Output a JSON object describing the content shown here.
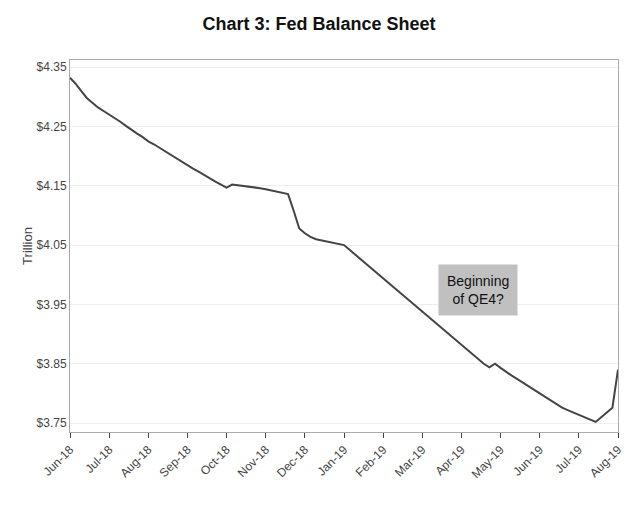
{
  "chart_data": {
    "type": "line",
    "title": "Chart 3: Fed Balance Sheet",
    "ylabel": "Trillion",
    "annotations": [
      "Beginning\nof QE4?"
    ],
    "color": "#444444",
    "grid": true,
    "ylim": [
      3.735,
      4.362
    ],
    "yticks": [
      {
        "value": 3.75,
        "label": "$3.75"
      },
      {
        "value": 3.85,
        "label": "$3.85"
      },
      {
        "value": 3.95,
        "label": "$3.95"
      },
      {
        "value": 4.05,
        "label": "$4.05"
      },
      {
        "value": 4.15,
        "label": "$4.15"
      },
      {
        "value": 4.25,
        "label": "$4.25"
      },
      {
        "value": 4.35,
        "label": "$4.35"
      }
    ],
    "categories": [
      "Jun-18",
      null,
      null,
      null,
      null,
      null,
      null,
      "Jul-18",
      null,
      null,
      null,
      null,
      null,
      null,
      "Aug-18",
      null,
      null,
      null,
      null,
      null,
      null,
      "Sep-18",
      null,
      null,
      null,
      null,
      null,
      null,
      "Oct-18",
      null,
      null,
      null,
      null,
      null,
      null,
      "Nov-18",
      null,
      null,
      null,
      null,
      null,
      null,
      "Dec-18",
      null,
      null,
      null,
      null,
      null,
      null,
      "Jan-19",
      null,
      null,
      null,
      null,
      null,
      null,
      "Feb-19",
      null,
      null,
      null,
      null,
      null,
      null,
      "Mar-19",
      null,
      null,
      null,
      null,
      null,
      null,
      "Apr-19",
      null,
      null,
      null,
      null,
      null,
      null,
      "May-19",
      null,
      null,
      null,
      null,
      null,
      null,
      "Jun-19",
      null,
      null,
      null,
      null,
      null,
      null,
      "Jul-19",
      null,
      null,
      null,
      null,
      null,
      null,
      "Aug-19"
    ],
    "values": [
      4.332,
      4.322,
      4.31,
      4.298,
      4.29,
      4.282,
      4.276,
      4.27,
      4.265,
      4.258,
      4.251,
      4.244,
      4.238,
      4.232,
      4.225,
      4.22,
      4.214,
      4.208,
      4.202,
      4.196,
      4.19,
      4.185,
      4.179,
      4.174,
      4.168,
      4.162,
      4.157,
      4.152,
      4.147,
      4.152,
      4.151,
      4.15,
      4.148,
      4.147,
      4.146,
      4.144,
      4.142,
      4.14,
      4.138,
      4.136,
      4.108,
      4.078,
      4.07,
      4.064,
      4.06,
      4.058,
      4.056,
      4.054,
      4.052,
      4.05,
      4.042,
      4.034,
      4.026,
      4.018,
      4.01,
      4.002,
      3.994,
      3.986,
      3.978,
      3.97,
      3.962,
      3.954,
      3.946,
      3.938,
      3.93,
      3.922,
      3.914,
      3.906,
      3.898,
      3.89,
      3.882,
      3.874,
      3.866,
      3.858,
      3.85,
      3.844,
      3.85,
      3.843,
      3.836,
      3.83,
      3.824,
      3.818,
      3.812,
      3.806,
      3.8,
      3.794,
      3.788,
      3.782,
      3.776,
      3.772,
      3.768,
      3.764,
      3.76,
      3.756,
      3.752,
      3.76,
      3.768,
      3.776,
      3.84
    ]
  }
}
